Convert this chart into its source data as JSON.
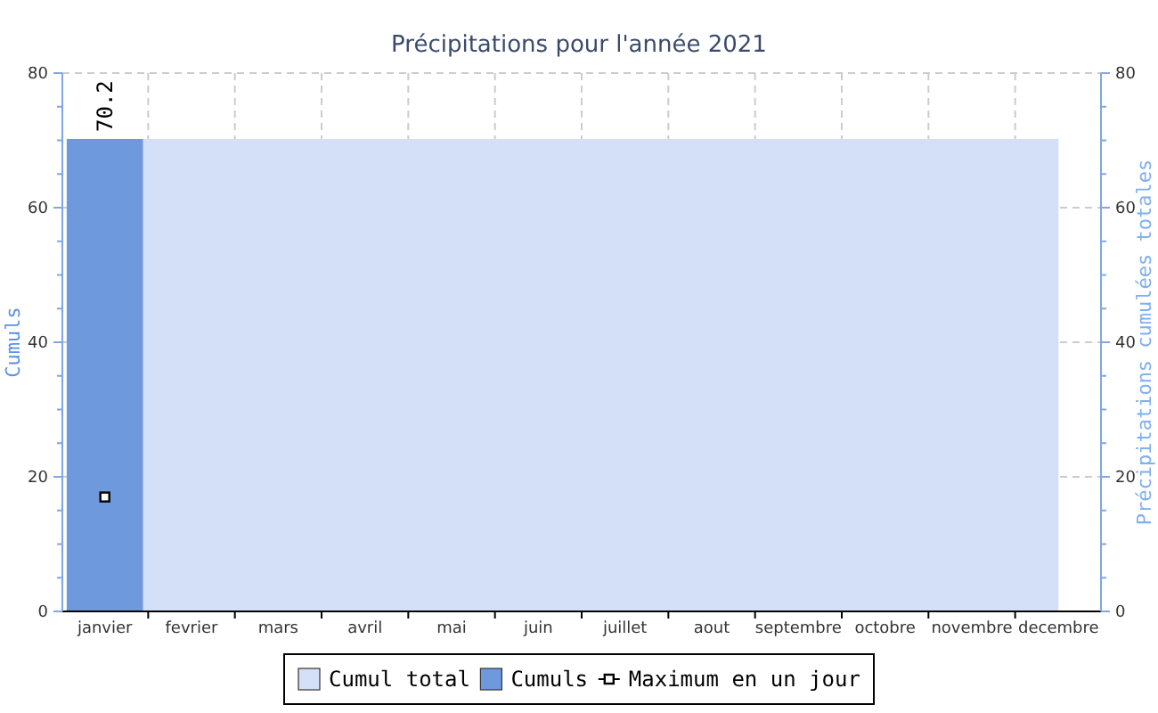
{
  "chart_data": {
    "type": "bar",
    "title": "Précipitations pour l'année 2021",
    "ylabel": "Cumuls",
    "y2label": "Précipitations cumulées totales",
    "categories": [
      "janvier",
      "fevrier",
      "mars",
      "avril",
      "mai",
      "juin",
      "juillet",
      "aout",
      "septembre",
      "octobre",
      "novembre",
      "decembre"
    ],
    "series": [
      {
        "name": "Cumul total",
        "type": "area",
        "axis": "y2",
        "color": "#d3e0f8",
        "values": [
          70.2,
          70.2,
          70.2,
          70.2,
          70.2,
          70.2,
          70.2,
          70.2,
          70.2,
          70.2,
          70.2,
          70.2
        ]
      },
      {
        "name": "Cumuls",
        "color": "#6f99dd",
        "values": [
          70.2,
          null,
          null,
          null,
          null,
          null,
          null,
          null,
          null,
          null,
          null,
          null
        ],
        "value_labels": [
          "70.2",
          null,
          null,
          null,
          null,
          null,
          null,
          null,
          null,
          null,
          null,
          null
        ]
      },
      {
        "name": "Maximum en un jour",
        "type": "line",
        "marker": "square",
        "color": "#000000",
        "values": [
          17,
          null,
          null,
          null,
          null,
          null,
          null,
          null,
          null,
          null,
          null,
          null
        ]
      }
    ],
    "ylim": [
      0,
      80
    ],
    "yticks": [
      0,
      {
        "value": 5,
        "label": null
      },
      {
        "value": 10,
        "label": null
      },
      {
        "value": 15,
        "label": null
      },
      20,
      {
        "value": 25,
        "label": null
      },
      {
        "value": 30,
        "label": null
      },
      {
        "value": 35,
        "label": null
      },
      40,
      {
        "value": 45,
        "label": null
      },
      {
        "value": 50,
        "label": null
      },
      {
        "value": 55,
        "label": null
      },
      60,
      {
        "value": 65,
        "label": null
      },
      {
        "value": 70,
        "label": null
      },
      {
        "value": 75,
        "label": null
      },
      80
    ],
    "y2lim": [
      0,
      80
    ],
    "y2ticks": [
      0,
      {
        "value": 5,
        "label": null
      },
      {
        "value": 10,
        "label": null
      },
      {
        "value": 15,
        "label": null
      },
      20,
      {
        "value": 25,
        "label": null
      },
      {
        "value": 30,
        "label": null
      },
      {
        "value": 35,
        "label": null
      },
      40,
      {
        "value": 45,
        "label": null
      },
      {
        "value": 50,
        "label": null
      },
      {
        "value": 55,
        "label": null
      },
      60,
      {
        "value": 65,
        "label": null
      },
      {
        "value": 70,
        "label": null
      },
      {
        "value": 75,
        "label": null
      },
      80
    ],
    "grid": true,
    "legend": "bottom"
  }
}
